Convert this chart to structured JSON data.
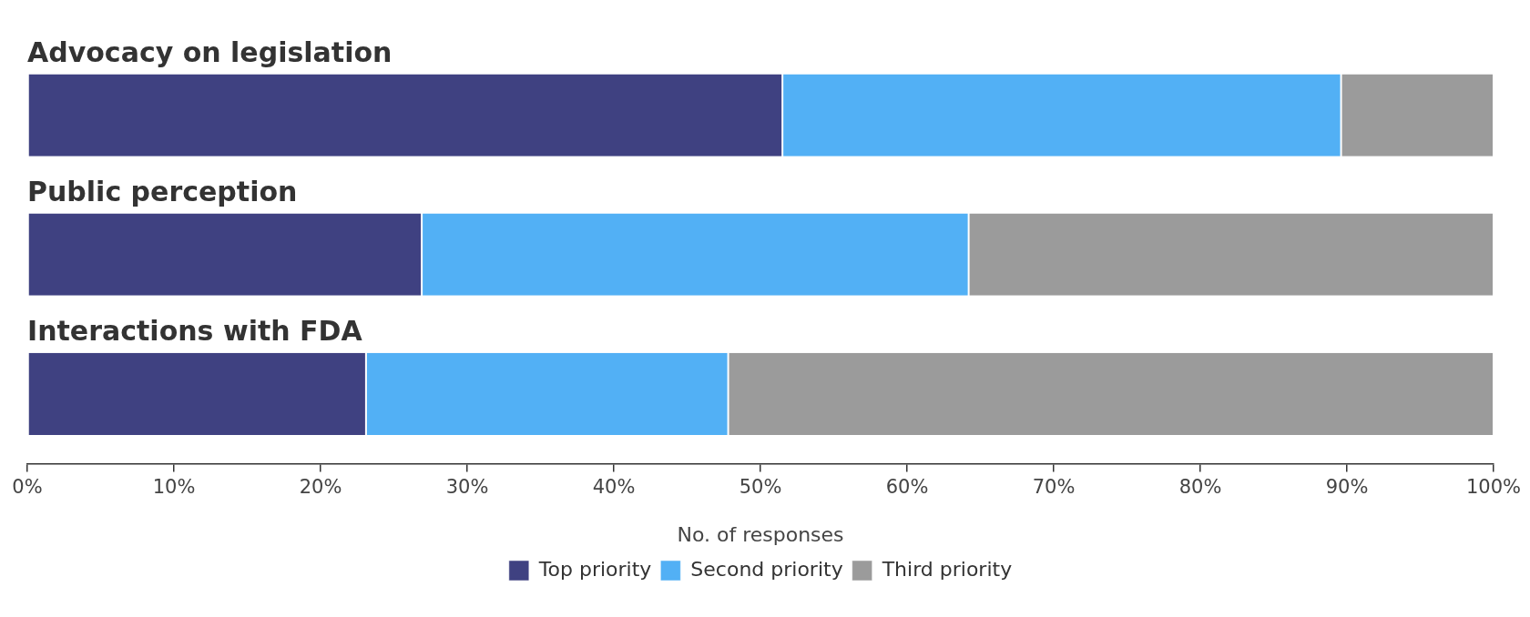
{
  "chart_data": {
    "type": "bar",
    "orientation": "horizontal",
    "stacked": true,
    "categories": [
      "Advocacy on legislation",
      "Public perception",
      "Interactions with FDA"
    ],
    "series": [
      {
        "name": "Top priority",
        "color": "#3f4181",
        "values": [
          51.5,
          26.9,
          23.1
        ]
      },
      {
        "name": "Second priority",
        "color": "#52b0f5",
        "values": [
          38.1,
          37.3,
          24.7
        ]
      },
      {
        "name": "Third priority",
        "color": "#9b9b9b",
        "values": [
          10.4,
          35.8,
          52.2
        ]
      }
    ],
    "xlabel": "No. of responses",
    "xlim": [
      0,
      100
    ],
    "xticks": [
      {
        "value": 0,
        "label": "0%"
      },
      {
        "value": 10,
        "label": "10%"
      },
      {
        "value": 20,
        "label": "20%"
      },
      {
        "value": 30,
        "label": "30%"
      },
      {
        "value": 40,
        "label": "40%"
      },
      {
        "value": 50,
        "label": "50%"
      },
      {
        "value": 60,
        "label": "60%"
      },
      {
        "value": 70,
        "label": "70%"
      },
      {
        "value": 80,
        "label": "80%"
      },
      {
        "value": 90,
        "label": "90%"
      },
      {
        "value": 100,
        "label": "100%"
      }
    ],
    "grid": false,
    "legend": "bottom"
  }
}
